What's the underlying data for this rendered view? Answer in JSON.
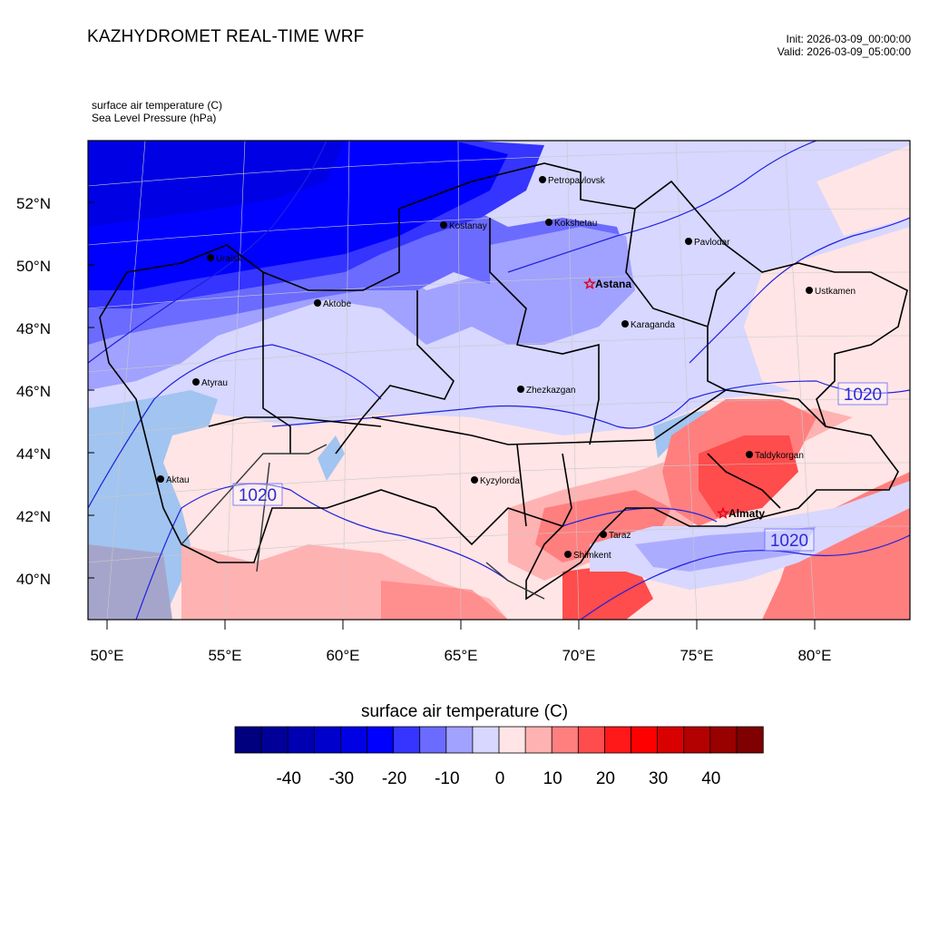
{
  "header": {
    "title": "KAZHYDROMET REAL-TIME WRF",
    "init": "Init: 2026-03-09_00:00:00",
    "valid": "Valid: 2026-03-09_05:00:00"
  },
  "fields": {
    "temperature": "surface air temperature   (C)",
    "pressure": "Sea Level Pressure   (hPa)"
  },
  "map": {
    "lat_labels": [
      "52°N",
      "50°N",
      "48°N",
      "46°N",
      "44°N",
      "42°N",
      "40°N"
    ],
    "lon_labels": [
      "50°E",
      "55°E",
      "60°E",
      "65°E",
      "70°E",
      "75°E",
      "80°E"
    ],
    "cities": [
      {
        "name": "Petropavlovsk",
        "capital": false
      },
      {
        "name": "Kostanay",
        "capital": false
      },
      {
        "name": "Kokshetau",
        "capital": false
      },
      {
        "name": "Uralsk",
        "capital": false
      },
      {
        "name": "Pavlodar",
        "capital": false
      },
      {
        "name": "Astana",
        "capital": true
      },
      {
        "name": "Ustkamen",
        "capital": false
      },
      {
        "name": "Aktobe",
        "capital": false
      },
      {
        "name": "Karaganda",
        "capital": false
      },
      {
        "name": "Atyrau",
        "capital": false
      },
      {
        "name": "Zhezkazgan",
        "capital": false
      },
      {
        "name": "Taldykorgan",
        "capital": false
      },
      {
        "name": "Kyzylorda",
        "capital": false
      },
      {
        "name": "Aktau",
        "capital": false
      },
      {
        "name": "Almaty",
        "capital": true
      },
      {
        "name": "Taraz",
        "capital": false
      },
      {
        "name": "Shimkent",
        "capital": false
      }
    ],
    "isobar_labels": [
      "1020",
      "1020",
      "1020"
    ]
  },
  "colorbar": {
    "title": "surface air temperature  (C)",
    "colors": [
      "#00007f",
      "#000099",
      "#0000b2",
      "#0000cc",
      "#0000e5",
      "#0000ff",
      "#3535ff",
      "#6b6bff",
      "#a1a1ff",
      "#d7d7ff",
      "#ffe5e5",
      "#ffb2b2",
      "#ff7f7f",
      "#ff4c4c",
      "#ff1919",
      "#ff0000",
      "#d90000",
      "#b30000",
      "#990000",
      "#7f0000"
    ],
    "tick_labels": [
      "-40",
      "-30",
      "-20",
      "-10",
      "0",
      "10",
      "20",
      "30",
      "40"
    ]
  }
}
